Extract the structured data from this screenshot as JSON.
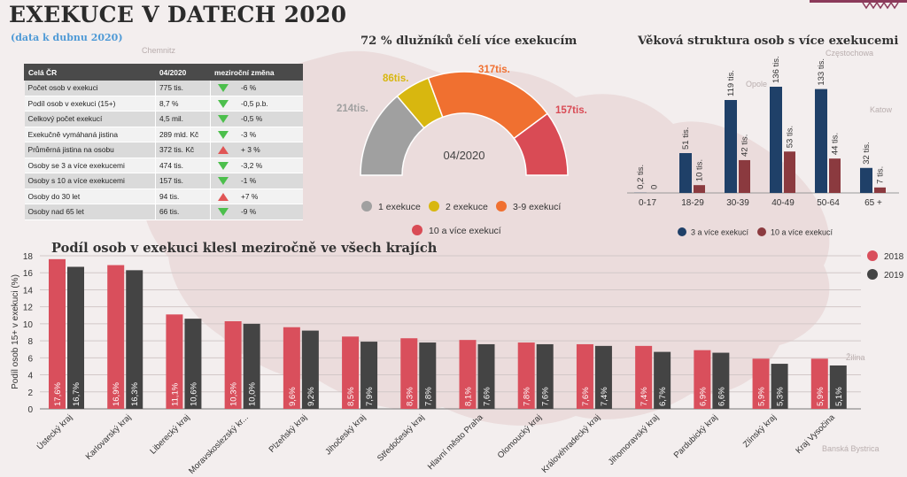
{
  "title": "EXEKUCE V DATECH 2020",
  "subtitle": "(data k dubnu 2020)",
  "colors": {
    "c2018": "#d94f5c",
    "c2019": "#444444",
    "navy": "#1f4068",
    "maroon": "#8b3a3f",
    "gray": "#a0a0a0",
    "yellow": "#d8b70f",
    "orange": "#f07030",
    "red": "#d94b55",
    "down": "#4cbf4c",
    "up": "#e05555"
  },
  "summary_table": {
    "headers": [
      "Celá ČR",
      "04/2020",
      "meziroční změna"
    ],
    "rows": [
      {
        "label": "Počet osob v exekuci",
        "value": "775 tis.",
        "trend": "down",
        "change": "-6 %"
      },
      {
        "label": "Podíl osob v exekuci (15+)",
        "value": "8,7 %",
        "trend": "down",
        "change": "-0,5 p.b."
      },
      {
        "label": "Celkový počet exekucí",
        "value": "4,5 mil.",
        "trend": "down",
        "change": "-0,5 %"
      },
      {
        "label": "Exekučně vymáhaná jistina",
        "value": "289 mld. Kč",
        "trend": "down",
        "change": "-3 %"
      },
      {
        "label": "Průměrná jistina na osobu",
        "value": "372 tis. Kč",
        "trend": "up",
        "change": "+ 3 %"
      },
      {
        "label": "Osoby se 3 a více exekucemi",
        "value": "474 tis.",
        "trend": "down",
        "change": "-3,2 %"
      },
      {
        "label": "Osoby s 10 a více exekucemi",
        "value": "157 tis.",
        "trend": "down",
        "change": "-1 %"
      },
      {
        "label": "Osoby do 30 let",
        "value": "94 tis.",
        "trend": "up",
        "change": "+7 %"
      },
      {
        "label": "Osoby nad 65 let",
        "value": "66 tis.",
        "trend": "down",
        "change": "-9 %"
      }
    ]
  },
  "chart_data": [
    {
      "type": "pie",
      "subtype": "half-donut",
      "title": "72 % dlužníků čelí více exekucím",
      "center_label": "04/2020",
      "slices": [
        {
          "name": "1 exekuce",
          "value": 214,
          "label": "214tis.",
          "color": "#a0a0a0"
        },
        {
          "name": "2 exekuce",
          "value": 86,
          "label": "86tis.",
          "color": "#d8b70f"
        },
        {
          "name": "3-9 exekucí",
          "value": 317,
          "label": "317tis.",
          "color": "#f07030"
        },
        {
          "name": "10 a více exekucí",
          "value": 157,
          "label": "157tis.",
          "color": "#d94b55"
        }
      ]
    },
    {
      "type": "bar",
      "title": "Věková struktura osob s více exekucemi",
      "categories": [
        "0-17",
        "18-29",
        "30-39",
        "40-49",
        "50-64",
        "65 +"
      ],
      "series": [
        {
          "name": "3 a více exekucí",
          "color": "#1f4068",
          "values": [
            0.2,
            51,
            119,
            136,
            133,
            32
          ],
          "labels": [
            "0,2 tis.",
            "51 tis.",
            "119 tis.",
            "136 tis.",
            "133 tis.",
            "32 tis."
          ]
        },
        {
          "name": "10 a více exekucí",
          "color": "#8b3a3f",
          "values": [
            0,
            10,
            42,
            53,
            44,
            7
          ],
          "labels": [
            "0",
            "10 tis.",
            "42 tis.",
            "53 tis.",
            "44 tis.",
            "7 tis."
          ]
        }
      ],
      "ylim": [
        0,
        140
      ],
      "legend": "bottom"
    },
    {
      "type": "bar",
      "title": "Podíl osob v exekuci klesl meziročně ve všech krajích",
      "ylabel": "Podíl osob 15+ v exekuci (%)",
      "ylim": [
        0,
        18
      ],
      "yticks": [
        "0",
        "2",
        "4",
        "6",
        "8",
        "10",
        "12",
        "14",
        "16",
        "18"
      ],
      "grid": true,
      "legend": "right",
      "categories": [
        "Ústecký kraj",
        "Karlovarský kraj",
        "Liberecký kraj",
        "Moravskoslezský kr...",
        "Plzeňský kraj",
        "Jihočeský kraj",
        "Středočeský kraj",
        "Hlavní město Praha",
        "Olomoucký kraj",
        "Královéhradecký kraj",
        "Jihomoravský kraj",
        "Pardubický kraj",
        "Zlínský kraj",
        "Kraj Vysočina"
      ],
      "series": [
        {
          "name": "2018",
          "color": "#d94f5c",
          "values": [
            17.6,
            16.9,
            11.1,
            10.3,
            9.6,
            8.5,
            8.3,
            8.1,
            7.8,
            7.6,
            7.4,
            6.9,
            5.9,
            5.9
          ],
          "labels": [
            "17,6%",
            "16,9%",
            "11,1%",
            "10,3%",
            "9,6%",
            "8,5%",
            "8,3%",
            "8,1%",
            "7,8%",
            "7,6%",
            "7,4%",
            "6,9%",
            "5,9%",
            "5,9%"
          ]
        },
        {
          "name": "2019",
          "color": "#444444",
          "values": [
            16.7,
            16.3,
            10.6,
            10.0,
            9.2,
            7.9,
            7.8,
            7.6,
            7.6,
            7.4,
            6.7,
            6.6,
            5.3,
            5.1
          ],
          "labels": [
            "16,7%",
            "16,3%",
            "10,6%",
            "10,0%",
            "9,2%",
            "7,9%",
            "7,8%",
            "7,6%",
            "7,6%",
            "7,4%",
            "6,7%",
            "6,6%",
            "5,3%",
            "5,1%"
          ]
        }
      ]
    }
  ],
  "map_labels": [
    "Chemnitz",
    "Częstochowa",
    "Opole",
    "Katow",
    "Žilina",
    "Banská Bystrica"
  ]
}
